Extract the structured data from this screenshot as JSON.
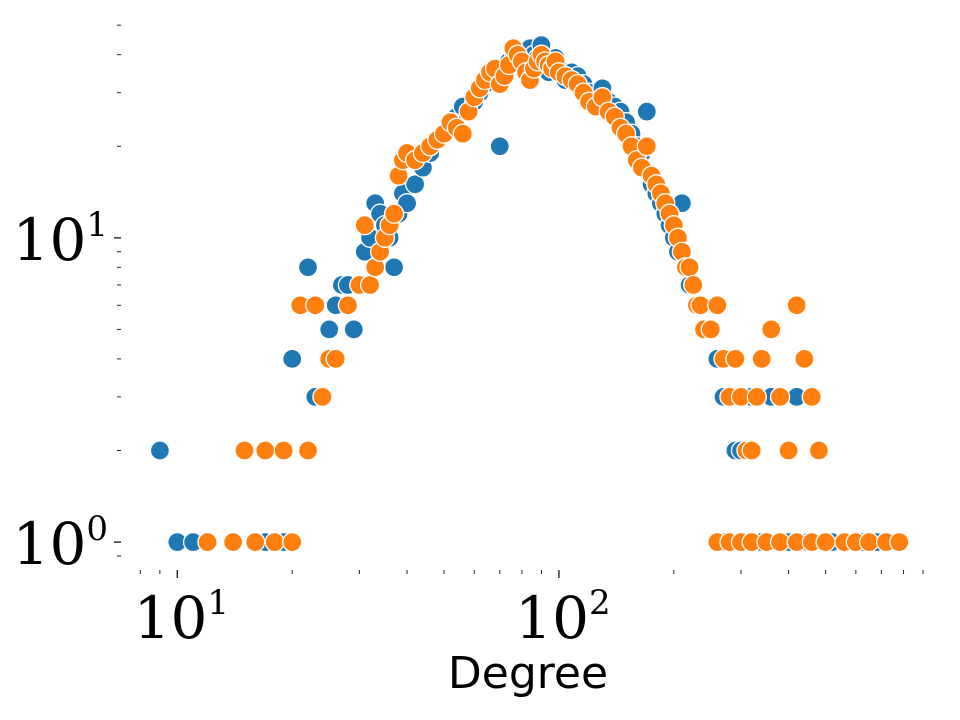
{
  "chart_data": {
    "type": "scatter",
    "title": "",
    "xlabel": "Degree",
    "ylabel": "",
    "x_scale": "log",
    "y_scale": "log",
    "xlim": [
      7.7,
      950
    ],
    "ylim": [
      0.86,
      52
    ],
    "grid": false,
    "legend": "none",
    "x_major_ticks": [
      {
        "value": 10,
        "base": "10",
        "exp": "1"
      },
      {
        "value": 100,
        "base": "10",
        "exp": "2"
      }
    ],
    "y_major_ticks": [
      {
        "value": 1,
        "base": "10",
        "exp": "0"
      },
      {
        "value": 10,
        "base": "10",
        "exp": "1"
      }
    ],
    "series": [
      {
        "color": "#1f77b4",
        "points": [
          [
            9,
            2
          ],
          [
            10,
            1
          ],
          [
            11,
            1
          ],
          [
            12,
            1
          ],
          [
            17,
            1
          ],
          [
            19,
            1
          ],
          [
            20,
            4
          ],
          [
            21,
            6
          ],
          [
            22,
            8
          ],
          [
            23,
            3
          ],
          [
            25,
            5
          ],
          [
            26,
            6
          ],
          [
            27,
            7
          ],
          [
            28,
            7
          ],
          [
            29,
            5
          ],
          [
            30,
            7
          ],
          [
            31,
            9
          ],
          [
            32,
            10
          ],
          [
            33,
            13
          ],
          [
            34,
            12
          ],
          [
            35,
            11
          ],
          [
            36,
            10
          ],
          [
            37,
            8
          ],
          [
            38,
            12
          ],
          [
            39,
            14
          ],
          [
            40,
            13
          ],
          [
            42,
            15
          ],
          [
            44,
            17
          ],
          [
            46,
            19
          ],
          [
            48,
            21
          ],
          [
            50,
            22
          ],
          [
            52,
            24
          ],
          [
            54,
            25
          ],
          [
            56,
            27
          ],
          [
            58,
            26
          ],
          [
            60,
            28
          ],
          [
            62,
            30
          ],
          [
            64,
            32
          ],
          [
            66,
            34
          ],
          [
            68,
            35
          ],
          [
            70,
            20
          ],
          [
            72,
            36
          ],
          [
            74,
            38
          ],
          [
            76,
            41
          ],
          [
            78,
            40
          ],
          [
            80,
            38
          ],
          [
            82,
            36
          ],
          [
            84,
            42
          ],
          [
            86,
            40
          ],
          [
            88,
            39
          ],
          [
            90,
            43
          ],
          [
            92,
            37
          ],
          [
            94,
            35
          ],
          [
            96,
            38
          ],
          [
            98,
            39
          ],
          [
            100,
            36
          ],
          [
            104,
            33
          ],
          [
            108,
            35
          ],
          [
            112,
            34
          ],
          [
            116,
            32
          ],
          [
            120,
            30
          ],
          [
            125,
            29
          ],
          [
            130,
            31
          ],
          [
            135,
            28
          ],
          [
            140,
            27
          ],
          [
            145,
            26
          ],
          [
            150,
            24
          ],
          [
            155,
            22
          ],
          [
            160,
            20
          ],
          [
            165,
            19
          ],
          [
            170,
            26
          ],
          [
            175,
            15
          ],
          [
            180,
            14
          ],
          [
            185,
            13
          ],
          [
            190,
            12
          ],
          [
            195,
            11
          ],
          [
            200,
            10
          ],
          [
            205,
            9
          ],
          [
            210,
            13
          ],
          [
            215,
            8
          ],
          [
            220,
            7
          ],
          [
            225,
            7
          ],
          [
            230,
            6
          ],
          [
            240,
            5
          ],
          [
            250,
            5
          ],
          [
            260,
            4
          ],
          [
            270,
            3
          ],
          [
            280,
            3
          ],
          [
            290,
            2
          ],
          [
            300,
            2
          ],
          [
            320,
            3
          ],
          [
            340,
            4
          ],
          [
            360,
            3
          ],
          [
            380,
            3
          ],
          [
            400,
            2
          ],
          [
            420,
            3
          ],
          [
            440,
            4
          ],
          [
            460,
            3
          ],
          [
            480,
            2
          ],
          [
            270,
            1
          ],
          [
            300,
            1
          ],
          [
            340,
            1
          ],
          [
            400,
            1
          ],
          [
            450,
            1
          ],
          [
            520,
            1
          ],
          [
            560,
            1
          ],
          [
            620,
            1
          ],
          [
            680,
            1
          ]
        ]
      },
      {
        "color": "#ff7f0e",
        "points": [
          [
            12,
            1
          ],
          [
            14,
            1
          ],
          [
            16,
            1
          ],
          [
            18,
            1
          ],
          [
            20,
            1
          ],
          [
            15,
            2
          ],
          [
            17,
            2
          ],
          [
            19,
            2
          ],
          [
            22,
            2
          ],
          [
            21,
            6
          ],
          [
            23,
            6
          ],
          [
            24,
            3
          ],
          [
            25,
            4
          ],
          [
            26,
            4
          ],
          [
            28,
            6
          ],
          [
            30,
            7
          ],
          [
            31,
            11
          ],
          [
            32,
            7
          ],
          [
            33,
            8
          ],
          [
            34,
            9
          ],
          [
            35,
            10
          ],
          [
            36,
            11
          ],
          [
            37,
            12
          ],
          [
            38,
            16
          ],
          [
            39,
            18
          ],
          [
            40,
            19
          ],
          [
            42,
            18
          ],
          [
            44,
            19
          ],
          [
            46,
            20
          ],
          [
            48,
            21
          ],
          [
            50,
            22
          ],
          [
            52,
            24
          ],
          [
            54,
            23
          ],
          [
            56,
            22
          ],
          [
            58,
            26
          ],
          [
            60,
            29
          ],
          [
            62,
            31
          ],
          [
            64,
            33
          ],
          [
            66,
            35
          ],
          [
            68,
            36
          ],
          [
            70,
            32
          ],
          [
            72,
            34
          ],
          [
            74,
            37
          ],
          [
            76,
            42
          ],
          [
            78,
            40
          ],
          [
            80,
            38
          ],
          [
            82,
            35
          ],
          [
            84,
            33
          ],
          [
            86,
            36
          ],
          [
            88,
            38
          ],
          [
            90,
            40
          ],
          [
            92,
            38
          ],
          [
            94,
            37
          ],
          [
            96,
            36
          ],
          [
            98,
            38
          ],
          [
            100,
            35
          ],
          [
            104,
            34
          ],
          [
            108,
            33
          ],
          [
            112,
            32
          ],
          [
            116,
            30
          ],
          [
            120,
            28
          ],
          [
            125,
            27
          ],
          [
            130,
            29
          ],
          [
            135,
            26
          ],
          [
            140,
            25
          ],
          [
            145,
            23
          ],
          [
            150,
            22
          ],
          [
            155,
            20
          ],
          [
            160,
            18
          ],
          [
            165,
            17
          ],
          [
            170,
            20
          ],
          [
            175,
            16
          ],
          [
            180,
            15
          ],
          [
            185,
            14
          ],
          [
            190,
            13
          ],
          [
            195,
            12
          ],
          [
            200,
            11
          ],
          [
            205,
            10
          ],
          [
            210,
            9
          ],
          [
            215,
            8
          ],
          [
            220,
            8
          ],
          [
            225,
            7
          ],
          [
            230,
            6
          ],
          [
            235,
            6
          ],
          [
            240,
            5
          ],
          [
            250,
            5
          ],
          [
            260,
            6
          ],
          [
            270,
            4
          ],
          [
            280,
            3
          ],
          [
            290,
            4
          ],
          [
            300,
            3
          ],
          [
            310,
            2
          ],
          [
            320,
            2
          ],
          [
            330,
            3
          ],
          [
            340,
            4
          ],
          [
            360,
            5
          ],
          [
            380,
            3
          ],
          [
            400,
            2
          ],
          [
            420,
            6
          ],
          [
            440,
            4
          ],
          [
            460,
            3
          ],
          [
            480,
            2
          ],
          [
            260,
            1
          ],
          [
            280,
            1
          ],
          [
            300,
            1
          ],
          [
            320,
            1
          ],
          [
            350,
            1
          ],
          [
            380,
            1
          ],
          [
            420,
            1
          ],
          [
            460,
            1
          ],
          [
            500,
            1
          ],
          [
            560,
            1
          ],
          [
            600,
            1
          ],
          [
            650,
            1
          ],
          [
            720,
            1
          ],
          [
            780,
            1
          ]
        ]
      }
    ]
  }
}
